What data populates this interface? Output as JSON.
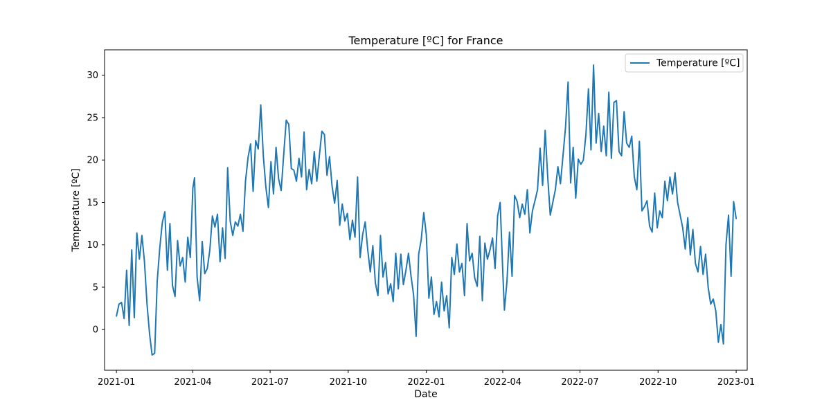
{
  "chart_data": {
    "type": "line",
    "title": "Temperature [ºC] for France",
    "xlabel": "Date",
    "ylabel": "Temperature [ºC]",
    "x_range": [
      "2020-12-18",
      "2023-01-14"
    ],
    "ylim": [
      -4.8,
      33.0
    ],
    "x_ticks": [
      "2021-01",
      "2021-04",
      "2021-07",
      "2021-10",
      "2022-01",
      "2022-04",
      "2022-07",
      "2022-10",
      "2023-01"
    ],
    "y_ticks": [
      0,
      5,
      10,
      15,
      20,
      25,
      30
    ],
    "grid": false,
    "legend_position": "top-right",
    "series": [
      {
        "name": "Temperature [ºC]",
        "color": "#1f77b4",
        "points": [
          [
            "2021-01-01",
            1.6
          ],
          [
            "2021-01-04",
            3.0
          ],
          [
            "2021-01-07",
            3.2
          ],
          [
            "2021-01-10",
            1.3
          ],
          [
            "2021-01-13",
            7.0
          ],
          [
            "2021-01-16",
            0.5
          ],
          [
            "2021-01-19",
            9.4
          ],
          [
            "2021-01-22",
            1.4
          ],
          [
            "2021-01-25",
            11.4
          ],
          [
            "2021-01-28",
            8.3
          ],
          [
            "2021-01-31",
            11.1
          ],
          [
            "2021-02-03",
            8.0
          ],
          [
            "2021-02-06",
            3.0
          ],
          [
            "2021-02-09",
            -0.5
          ],
          [
            "2021-02-12",
            -3.0
          ],
          [
            "2021-02-15",
            -2.8
          ],
          [
            "2021-02-18",
            5.7
          ],
          [
            "2021-02-21",
            9.6
          ],
          [
            "2021-02-24",
            12.6
          ],
          [
            "2021-02-27",
            13.9
          ],
          [
            "2021-03-02",
            7.0
          ],
          [
            "2021-03-05",
            12.5
          ],
          [
            "2021-03-08",
            5.2
          ],
          [
            "2021-03-11",
            3.9
          ],
          [
            "2021-03-14",
            10.5
          ],
          [
            "2021-03-17",
            7.5
          ],
          [
            "2021-03-20",
            8.5
          ],
          [
            "2021-03-23",
            5.6
          ],
          [
            "2021-03-26",
            10.9
          ],
          [
            "2021-03-29",
            8.5
          ],
          [
            "2021-04-01",
            16.7
          ],
          [
            "2021-04-03",
            17.9
          ],
          [
            "2021-04-06",
            6.2
          ],
          [
            "2021-04-09",
            3.4
          ],
          [
            "2021-04-12",
            10.4
          ],
          [
            "2021-04-15",
            6.6
          ],
          [
            "2021-04-18",
            7.2
          ],
          [
            "2021-04-21",
            9.4
          ],
          [
            "2021-04-24",
            13.4
          ],
          [
            "2021-04-27",
            12.1
          ],
          [
            "2021-04-30",
            13.6
          ],
          [
            "2021-05-03",
            8.0
          ],
          [
            "2021-05-06",
            12.0
          ],
          [
            "2021-05-09",
            8.4
          ],
          [
            "2021-05-12",
            19.1
          ],
          [
            "2021-05-15",
            12.8
          ],
          [
            "2021-05-18",
            11.1
          ],
          [
            "2021-05-21",
            12.7
          ],
          [
            "2021-05-24",
            12.2
          ],
          [
            "2021-05-27",
            13.6
          ],
          [
            "2021-05-30",
            11.6
          ],
          [
            "2021-06-02",
            17.5
          ],
          [
            "2021-06-05",
            20.3
          ],
          [
            "2021-06-08",
            21.9
          ],
          [
            "2021-06-11",
            16.3
          ],
          [
            "2021-06-14",
            22.3
          ],
          [
            "2021-06-17",
            21.3
          ],
          [
            "2021-06-20",
            26.5
          ],
          [
            "2021-06-23",
            20.5
          ],
          [
            "2021-06-26",
            16.8
          ],
          [
            "2021-06-29",
            14.4
          ],
          [
            "2021-07-02",
            19.8
          ],
          [
            "2021-07-05",
            16.0
          ],
          [
            "2021-07-08",
            21.5
          ],
          [
            "2021-07-11",
            17.8
          ],
          [
            "2021-07-14",
            16.4
          ],
          [
            "2021-07-17",
            20.6
          ],
          [
            "2021-07-20",
            24.7
          ],
          [
            "2021-07-23",
            24.2
          ],
          [
            "2021-07-26",
            19.0
          ],
          [
            "2021-07-29",
            18.8
          ],
          [
            "2021-08-01",
            17.5
          ],
          [
            "2021-08-04",
            20.2
          ],
          [
            "2021-08-07",
            18.0
          ],
          [
            "2021-08-10",
            23.3
          ],
          [
            "2021-08-13",
            16.5
          ],
          [
            "2021-08-16",
            18.9
          ],
          [
            "2021-08-19",
            17.2
          ],
          [
            "2021-08-22",
            21.0
          ],
          [
            "2021-08-25",
            17.5
          ],
          [
            "2021-08-28",
            20.5
          ],
          [
            "2021-08-31",
            23.4
          ],
          [
            "2021-09-03",
            23.0
          ],
          [
            "2021-09-06",
            18.2
          ],
          [
            "2021-09-09",
            20.4
          ],
          [
            "2021-09-12",
            16.9
          ],
          [
            "2021-09-15",
            14.9
          ],
          [
            "2021-09-18",
            17.6
          ],
          [
            "2021-09-21",
            12.3
          ],
          [
            "2021-09-24",
            14.8
          ],
          [
            "2021-09-27",
            12.8
          ],
          [
            "2021-09-30",
            13.7
          ],
          [
            "2021-10-03",
            10.6
          ],
          [
            "2021-10-06",
            12.9
          ],
          [
            "2021-10-09",
            10.9
          ],
          [
            "2021-10-12",
            18.0
          ],
          [
            "2021-10-15",
            8.5
          ],
          [
            "2021-10-18",
            11.2
          ],
          [
            "2021-10-21",
            12.7
          ],
          [
            "2021-10-24",
            9.4
          ],
          [
            "2021-10-27",
            6.8
          ],
          [
            "2021-10-30",
            9.9
          ],
          [
            "2021-11-02",
            5.5
          ],
          [
            "2021-11-05",
            4.0
          ],
          [
            "2021-11-08",
            11.1
          ],
          [
            "2021-11-11",
            6.2
          ],
          [
            "2021-11-14",
            7.9
          ],
          [
            "2021-11-17",
            4.2
          ],
          [
            "2021-11-20",
            5.4
          ],
          [
            "2021-11-23",
            3.3
          ],
          [
            "2021-11-26",
            9.0
          ],
          [
            "2021-11-29",
            4.8
          ],
          [
            "2021-12-02",
            8.9
          ],
          [
            "2021-12-05",
            5.3
          ],
          [
            "2021-12-08",
            7.0
          ],
          [
            "2021-12-11",
            9.0
          ],
          [
            "2021-12-14",
            6.3
          ],
          [
            "2021-12-17",
            4.1
          ],
          [
            "2021-12-20",
            -0.8
          ],
          [
            "2021-12-23",
            8.9
          ],
          [
            "2021-12-26",
            10.6
          ],
          [
            "2021-12-29",
            13.8
          ],
          [
            "2022-01-01",
            11.2
          ],
          [
            "2022-01-04",
            3.7
          ],
          [
            "2022-01-07",
            6.2
          ],
          [
            "2022-01-10",
            1.8
          ],
          [
            "2022-01-13",
            3.3
          ],
          [
            "2022-01-16",
            1.5
          ],
          [
            "2022-01-19",
            5.6
          ],
          [
            "2022-01-22",
            2.2
          ],
          [
            "2022-01-25",
            4.0
          ],
          [
            "2022-01-28",
            0.2
          ],
          [
            "2022-01-31",
            8.5
          ],
          [
            "2022-02-03",
            6.5
          ],
          [
            "2022-02-06",
            10.1
          ],
          [
            "2022-02-09",
            6.8
          ],
          [
            "2022-02-12",
            7.8
          ],
          [
            "2022-02-15",
            4.0
          ],
          [
            "2022-02-18",
            12.5
          ],
          [
            "2022-02-21",
            8.1
          ],
          [
            "2022-02-24",
            9.0
          ],
          [
            "2022-02-27",
            6.1
          ],
          [
            "2022-03-02",
            5.1
          ],
          [
            "2022-03-05",
            11.0
          ],
          [
            "2022-03-08",
            3.4
          ],
          [
            "2022-03-11",
            10.2
          ],
          [
            "2022-03-14",
            8.3
          ],
          [
            "2022-03-17",
            9.4
          ],
          [
            "2022-03-20",
            10.8
          ],
          [
            "2022-03-23",
            7.2
          ],
          [
            "2022-03-26",
            13.4
          ],
          [
            "2022-03-29",
            15.0
          ],
          [
            "2022-04-01",
            7.0
          ],
          [
            "2022-04-03",
            2.3
          ],
          [
            "2022-04-06",
            5.7
          ],
          [
            "2022-04-09",
            11.5
          ],
          [
            "2022-04-12",
            6.3
          ],
          [
            "2022-04-15",
            15.8
          ],
          [
            "2022-04-18",
            15.1
          ],
          [
            "2022-04-21",
            13.2
          ],
          [
            "2022-04-24",
            14.8
          ],
          [
            "2022-04-27",
            13.6
          ],
          [
            "2022-04-30",
            16.5
          ],
          [
            "2022-05-03",
            11.4
          ],
          [
            "2022-05-06",
            14.0
          ],
          [
            "2022-05-09",
            15.2
          ],
          [
            "2022-05-12",
            16.5
          ],
          [
            "2022-05-15",
            21.4
          ],
          [
            "2022-05-18",
            17.0
          ],
          [
            "2022-05-21",
            23.5
          ],
          [
            "2022-05-24",
            18.0
          ],
          [
            "2022-05-27",
            13.5
          ],
          [
            "2022-05-30",
            15.0
          ],
          [
            "2022-06-02",
            16.5
          ],
          [
            "2022-06-05",
            19.2
          ],
          [
            "2022-06-08",
            17.2
          ],
          [
            "2022-06-11",
            20.5
          ],
          [
            "2022-06-14",
            23.9
          ],
          [
            "2022-06-17",
            29.2
          ],
          [
            "2022-06-20",
            17.3
          ],
          [
            "2022-06-23",
            21.5
          ],
          [
            "2022-06-26",
            15.5
          ],
          [
            "2022-06-29",
            20.1
          ],
          [
            "2022-07-02",
            19.5
          ],
          [
            "2022-07-05",
            20.0
          ],
          [
            "2022-07-08",
            23.0
          ],
          [
            "2022-07-11",
            28.4
          ],
          [
            "2022-07-14",
            21.2
          ],
          [
            "2022-07-17",
            31.2
          ],
          [
            "2022-07-20",
            22.0
          ],
          [
            "2022-07-23",
            25.5
          ],
          [
            "2022-07-26",
            21.0
          ],
          [
            "2022-07-29",
            24.0
          ],
          [
            "2022-08-01",
            20.5
          ],
          [
            "2022-08-04",
            28.0
          ],
          [
            "2022-08-07",
            20.2
          ],
          [
            "2022-08-10",
            26.8
          ],
          [
            "2022-08-13",
            27.0
          ],
          [
            "2022-08-16",
            21.0
          ],
          [
            "2022-08-19",
            20.5
          ],
          [
            "2022-08-22",
            25.7
          ],
          [
            "2022-08-25",
            22.0
          ],
          [
            "2022-08-28",
            21.5
          ],
          [
            "2022-08-31",
            22.8
          ],
          [
            "2022-09-03",
            18.0
          ],
          [
            "2022-09-06",
            16.5
          ],
          [
            "2022-09-09",
            22.2
          ],
          [
            "2022-09-12",
            14.0
          ],
          [
            "2022-09-15",
            14.5
          ],
          [
            "2022-09-18",
            15.2
          ],
          [
            "2022-09-21",
            12.2
          ],
          [
            "2022-09-24",
            11.5
          ],
          [
            "2022-09-27",
            16.1
          ],
          [
            "2022-09-30",
            12.0
          ],
          [
            "2022-10-03",
            14.0
          ],
          [
            "2022-10-06",
            13.2
          ],
          [
            "2022-10-09",
            17.5
          ],
          [
            "2022-10-12",
            15.2
          ],
          [
            "2022-10-15",
            18.0
          ],
          [
            "2022-10-18",
            16.0
          ],
          [
            "2022-10-21",
            18.5
          ],
          [
            "2022-10-24",
            15.0
          ],
          [
            "2022-10-27",
            13.5
          ],
          [
            "2022-10-30",
            12.0
          ],
          [
            "2022-11-02",
            9.5
          ],
          [
            "2022-11-05",
            13.2
          ],
          [
            "2022-11-08",
            8.8
          ],
          [
            "2022-11-11",
            11.8
          ],
          [
            "2022-11-14",
            7.8
          ],
          [
            "2022-11-17",
            6.8
          ],
          [
            "2022-11-20",
            9.8
          ],
          [
            "2022-11-23",
            6.5
          ],
          [
            "2022-11-26",
            8.9
          ],
          [
            "2022-11-29",
            5.0
          ],
          [
            "2022-12-02",
            3.0
          ],
          [
            "2022-12-05",
            3.6
          ],
          [
            "2022-12-08",
            2.2
          ],
          [
            "2022-12-11",
            -1.5
          ],
          [
            "2022-12-14",
            0.6
          ],
          [
            "2022-12-17",
            -1.7
          ],
          [
            "2022-12-20",
            10.0
          ],
          [
            "2022-12-23",
            13.5
          ],
          [
            "2022-12-26",
            6.3
          ],
          [
            "2022-12-29",
            15.1
          ],
          [
            "2023-01-01",
            13.1
          ]
        ]
      }
    ]
  }
}
